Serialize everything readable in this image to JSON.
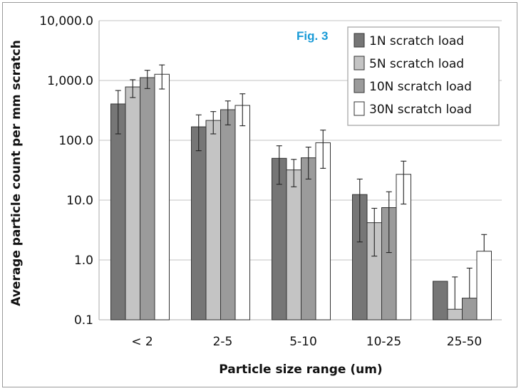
{
  "chart_data": {
    "type": "bar",
    "title": "Fig. 3",
    "xlabel": "Particle size range (um)",
    "ylabel": "Average particle count per  mm scratch",
    "yscale": "log",
    "ylim": [
      0.1,
      10000
    ],
    "yticks": [
      "0.1",
      "1.0",
      "10.0",
      "100.0",
      "1,000.0",
      "10,000.0"
    ],
    "grid": true,
    "legend_position": "top-right",
    "categories": [
      "< 2",
      "2-5",
      "5-10",
      "10-25",
      "25-50"
    ],
    "series": [
      {
        "name": "1N scratch load",
        "color": "#767676",
        "values": [
          405,
          168,
          50,
          12.4,
          0.44
        ],
        "err_high": [
          680,
          266,
          81,
          22.5,
          null
        ],
        "err_low": [
          128,
          67,
          18.4,
          2.0,
          null
        ]
      },
      {
        "name": "5N scratch load",
        "color": "#c4c4c4",
        "values": [
          780,
          215,
          32,
          4.2,
          0.15
        ],
        "err_high": [
          1030,
          302,
          48,
          7.3,
          0.52
        ],
        "err_low": [
          518,
          128,
          16.7,
          1.16,
          null
        ]
      },
      {
        "name": "10N scratch load",
        "color": "#9b9b9b",
        "values": [
          1116,
          325,
          51,
          7.5,
          0.23
        ],
        "err_high": [
          1480,
          455,
          77,
          13.8,
          0.73
        ],
        "err_low": [
          733,
          181,
          22.5,
          1.33,
          null
        ]
      },
      {
        "name": "30N scratch load",
        "color": "#ffffff",
        "values": [
          1270,
          383,
          91,
          27,
          1.4
        ],
        "err_high": [
          1820,
          599,
          148,
          44.8,
          2.66
        ],
        "err_low": [
          720,
          175,
          34,
          8.6,
          null
        ]
      }
    ],
    "title_color": "#1a9bd7"
  }
}
